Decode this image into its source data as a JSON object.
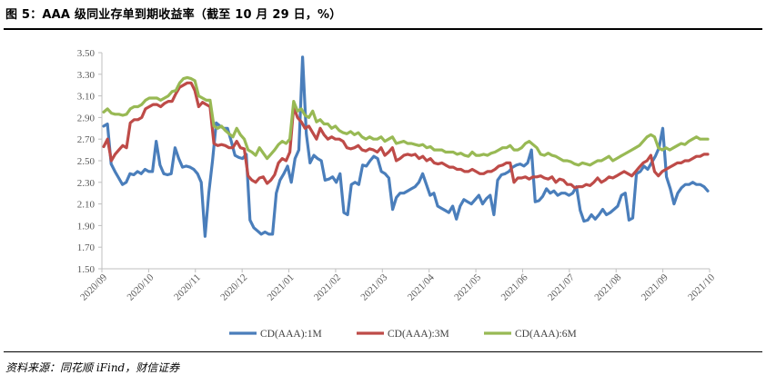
{
  "figure": {
    "title": "图 5：AAA 级同业存单到期收益率（截至 10 月 29 日，%）",
    "source": "资料来源：同花顺 iFind，财信证券"
  },
  "chart_data": {
    "type": "line",
    "ylim": [
      1.5,
      3.5
    ],
    "yticks": [
      "3.50",
      "3.30",
      "3.10",
      "2.90",
      "2.70",
      "2.50",
      "2.30",
      "2.10",
      "1.90",
      "1.70",
      "1.50"
    ],
    "xticks": [
      "2020/09",
      "2020/10",
      "2020/11",
      "2020/12",
      "2021/01",
      "2021/02",
      "2021/03",
      "2021/04",
      "2021/05",
      "2021/06",
      "2021/07",
      "2021/08",
      "2021/09",
      "2021/10"
    ],
    "grid": false,
    "legend_position": "bottom",
    "colors": {
      "CD(AAA):1M": "#4a7ebb",
      "CD(AAA):3M": "#be4b48",
      "CD(AAA):6M": "#98b954"
    },
    "series": [
      {
        "name": "CD(AAA):1M",
        "values": [
          2.82,
          2.84,
          2.47,
          2.4,
          2.34,
          2.28,
          2.3,
          2.38,
          2.37,
          2.4,
          2.38,
          2.42,
          2.4,
          2.4,
          2.68,
          2.46,
          2.38,
          2.37,
          2.38,
          2.62,
          2.52,
          2.44,
          2.45,
          2.44,
          2.42,
          2.38,
          2.3,
          1.8,
          2.2,
          2.5,
          2.85,
          2.82,
          2.8,
          2.8,
          2.68,
          2.55,
          2.53,
          2.52,
          2.56,
          1.95,
          1.88,
          1.85,
          1.82,
          1.84,
          1.82,
          1.82,
          2.2,
          2.32,
          2.38,
          2.45,
          2.3,
          2.52,
          2.6,
          3.46,
          2.75,
          2.48,
          2.55,
          2.52,
          2.5,
          2.32,
          2.33,
          2.35,
          2.3,
          2.38,
          2.02,
          2.0,
          2.28,
          2.3,
          2.28,
          2.46,
          2.45,
          2.5,
          2.54,
          2.52,
          2.4,
          2.38,
          2.34,
          2.05,
          2.16,
          2.2,
          2.2,
          2.22,
          2.24,
          2.26,
          2.3,
          2.38,
          2.28,
          2.18,
          2.2,
          2.08,
          2.06,
          2.04,
          2.02,
          2.08,
          1.96,
          2.08,
          2.14,
          2.12,
          2.1,
          2.14,
          2.18,
          2.1,
          2.15,
          2.18,
          2.0,
          2.32,
          2.37,
          2.38,
          2.4,
          2.44,
          2.46,
          2.47,
          2.45,
          2.48,
          2.6,
          2.12,
          2.13,
          2.17,
          2.24,
          2.2,
          2.22,
          2.18,
          2.2,
          2.2,
          2.18,
          2.2,
          2.26,
          2.04,
          1.94,
          1.95,
          2.0,
          1.96,
          2.0,
          2.05,
          2.0,
          2.02,
          2.05,
          2.08,
          2.18,
          2.2,
          1.95,
          1.97,
          2.38,
          2.4,
          2.45,
          2.42,
          2.48,
          2.54,
          2.62,
          2.8,
          2.35,
          2.24,
          2.1,
          2.2,
          2.25,
          2.28,
          2.28,
          2.3,
          2.28,
          2.28,
          2.26,
          2.22
        ]
      },
      {
        "name": "CD(AAA):3M",
        "values": [
          2.63,
          2.7,
          2.5,
          2.56,
          2.6,
          2.64,
          2.62,
          2.85,
          2.88,
          2.88,
          2.9,
          2.98,
          3.0,
          3.02,
          3.02,
          3.0,
          3.03,
          3.05,
          3.05,
          3.12,
          3.18,
          3.2,
          3.22,
          3.22,
          3.15,
          3.0,
          3.04,
          3.02,
          3.0,
          2.66,
          2.64,
          2.65,
          2.64,
          2.62,
          2.62,
          2.68,
          2.62,
          2.61,
          2.36,
          2.32,
          2.3,
          2.34,
          2.35,
          2.29,
          2.32,
          2.37,
          2.48,
          2.52,
          2.5,
          2.58,
          3.0,
          2.9,
          2.86,
          2.8,
          2.82,
          2.76,
          2.7,
          2.8,
          2.74,
          2.7,
          2.72,
          2.7,
          2.7,
          2.68,
          2.62,
          2.61,
          2.62,
          2.64,
          2.6,
          2.59,
          2.61,
          2.6,
          2.58,
          2.62,
          2.55,
          2.58,
          2.62,
          2.5,
          2.52,
          2.55,
          2.56,
          2.55,
          2.56,
          2.52,
          2.54,
          2.5,
          2.52,
          2.48,
          2.47,
          2.48,
          2.46,
          2.44,
          2.44,
          2.42,
          2.42,
          2.4,
          2.4,
          2.42,
          2.4,
          2.38,
          2.38,
          2.4,
          2.4,
          2.42,
          2.45,
          2.46,
          2.48,
          2.48,
          2.3,
          2.34,
          2.34,
          2.35,
          2.33,
          2.35,
          2.35,
          2.36,
          2.34,
          2.33,
          2.35,
          2.3,
          2.33,
          2.32,
          2.28,
          2.28,
          2.25,
          2.26,
          2.26,
          2.28,
          2.27,
          2.3,
          2.34,
          2.3,
          2.32,
          2.35,
          2.34,
          2.36,
          2.38,
          2.4,
          2.38,
          2.36,
          2.4,
          2.44,
          2.48,
          2.5,
          2.55,
          2.4,
          2.36,
          2.4,
          2.42,
          2.44,
          2.46,
          2.48,
          2.48,
          2.5,
          2.5,
          2.52,
          2.54,
          2.54,
          2.56,
          2.56
        ]
      },
      {
        "name": "CD(AAA):6M",
        "values": [
          2.95,
          2.98,
          2.94,
          2.93,
          2.93,
          2.92,
          2.93,
          2.98,
          3.0,
          3.0,
          3.02,
          3.06,
          3.08,
          3.08,
          3.08,
          3.06,
          3.08,
          3.1,
          3.14,
          3.15,
          3.22,
          3.26,
          3.27,
          3.26,
          3.24,
          3.1,
          3.08,
          3.06,
          3.06,
          2.82,
          2.8,
          2.82,
          2.78,
          2.75,
          2.72,
          2.8,
          2.74,
          2.7,
          2.6,
          2.58,
          2.55,
          2.62,
          2.57,
          2.52,
          2.56,
          2.6,
          2.65,
          2.68,
          2.66,
          2.7,
          3.05,
          2.96,
          2.98,
          2.92,
          2.9,
          2.96,
          2.86,
          2.88,
          2.84,
          2.84,
          2.8,
          2.82,
          2.78,
          2.76,
          2.75,
          2.77,
          2.74,
          2.76,
          2.72,
          2.7,
          2.72,
          2.7,
          2.7,
          2.72,
          2.68,
          2.7,
          2.72,
          2.66,
          2.67,
          2.68,
          2.66,
          2.66,
          2.65,
          2.64,
          2.65,
          2.62,
          2.63,
          2.6,
          2.6,
          2.6,
          2.58,
          2.58,
          2.58,
          2.56,
          2.57,
          2.55,
          2.54,
          2.58,
          2.55,
          2.55,
          2.56,
          2.55,
          2.57,
          2.58,
          2.6,
          2.62,
          2.62,
          2.64,
          2.6,
          2.6,
          2.62,
          2.66,
          2.68,
          2.65,
          2.62,
          2.56,
          2.55,
          2.57,
          2.55,
          2.54,
          2.52,
          2.5,
          2.5,
          2.49,
          2.47,
          2.46,
          2.48,
          2.47,
          2.46,
          2.48,
          2.5,
          2.5,
          2.52,
          2.54,
          2.5,
          2.52,
          2.54,
          2.56,
          2.58,
          2.6,
          2.62,
          2.64,
          2.68,
          2.72,
          2.74,
          2.72,
          2.62,
          2.6,
          2.62,
          2.6,
          2.62,
          2.64,
          2.66,
          2.65,
          2.68,
          2.7,
          2.72,
          2.7,
          2.7,
          2.7
        ]
      }
    ]
  }
}
